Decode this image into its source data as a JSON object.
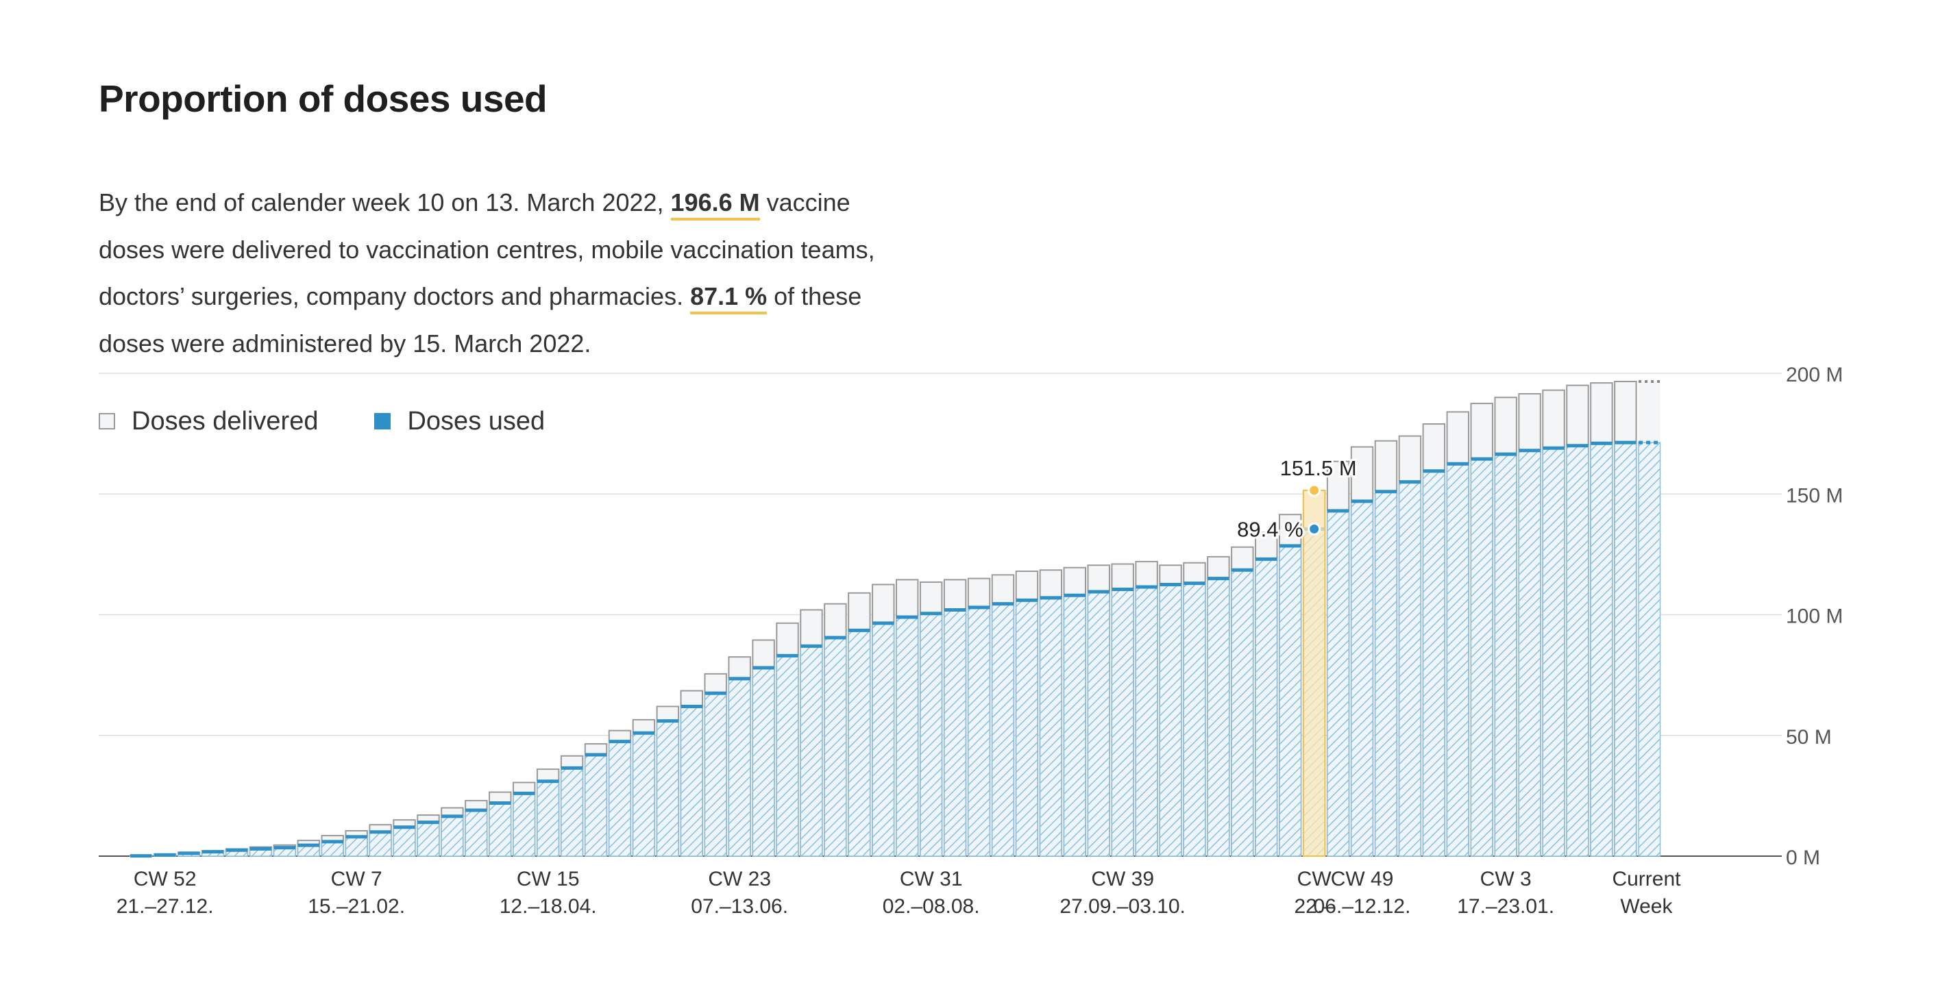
{
  "header": {
    "title": "Proportion of doses used"
  },
  "intro": {
    "part1": "By the end of calender week 10 on 13. March 2022, ",
    "delivered_total": "196.6 M",
    "part2": " vaccine doses were delivered to vaccination centres, mobile vaccination teams, doctors’ surgeries, company doctors and pharmacies. ",
    "used_share": "87.1 %",
    "part3": " of these doses were administered by 15. March 2022."
  },
  "legend": {
    "delivered_label": "Doses delivered",
    "used_label": "Doses used"
  },
  "colors": {
    "used_accent": "#2f90c7",
    "hatch": "#8cc0df",
    "hatch_bg": "#eef6fb",
    "delivered_fill": "#f4f5f6",
    "delivered_stroke": "#9a9a9a",
    "highlight": "#f4c14b",
    "highlight_fill": "#fbe7b5",
    "grid": "#dddddd",
    "axis": "#555555"
  },
  "chart_data": {
    "type": "bar",
    "unit": "M",
    "ylim": [
      0,
      200
    ],
    "yticks": [
      {
        "value": 0,
        "label": "0 M"
      },
      {
        "value": 50,
        "label": "50 M"
      },
      {
        "value": 100,
        "label": "100 M"
      },
      {
        "value": 150,
        "label": "150 M"
      },
      {
        "value": 200,
        "label": "200 M"
      }
    ],
    "grid": true,
    "legend_position": "top-left",
    "series": [
      {
        "name": "Doses delivered",
        "values": [
          0.2,
          0.8,
          1.5,
          2.2,
          3.0,
          3.8,
          4.6,
          6.5,
          8.5,
          10.5,
          13.0,
          15.0,
          17.0,
          20.0,
          23.0,
          26.5,
          30.5,
          36.0,
          41.5,
          46.5,
          52.0,
          56.5,
          62.0,
          68.5,
          75.5,
          82.5,
          89.5,
          96.5,
          102.0,
          104.5,
          109.0,
          112.5,
          114.5,
          113.5,
          114.5,
          115.0,
          116.5,
          118.0,
          118.5,
          119.5,
          120.5,
          121.0,
          122.0,
          120.5,
          121.5,
          124.0,
          128.0,
          134.0,
          141.5,
          151.5,
          163.5,
          169.5,
          172.0,
          174.0,
          179.0,
          184.0,
          187.5,
          190.0,
          191.5,
          193.0,
          195.0,
          196.0,
          196.6,
          196.6
        ],
        "note_last": "dotted"
      },
      {
        "name": "Doses used",
        "values": [
          0.1,
          0.5,
          1.2,
          1.8,
          2.5,
          3.0,
          3.5,
          4.5,
          6.0,
          8.0,
          10.0,
          12.0,
          14.0,
          16.5,
          19.0,
          22.0,
          26.0,
          31.0,
          36.5,
          42.0,
          47.5,
          51.0,
          56.0,
          62.0,
          67.5,
          73.5,
          78.0,
          83.0,
          87.0,
          90.5,
          93.5,
          96.5,
          99.0,
          100.5,
          102.0,
          103.0,
          104.5,
          106.0,
          107.0,
          108.0,
          109.5,
          110.5,
          111.5,
          112.5,
          113.0,
          115.0,
          118.5,
          123.0,
          128.5,
          135.5,
          143.0,
          147.0,
          151.0,
          155.0,
          159.5,
          162.5,
          164.5,
          166.5,
          168.0,
          169.0,
          170.0,
          171.0,
          171.3,
          171.3
        ]
      }
    ],
    "x_ticks": [
      {
        "index": 1,
        "label": "CW 52",
        "sub": "21.–27.12."
      },
      {
        "index": 9,
        "label": "CW 7",
        "sub": "15.–21.02."
      },
      {
        "index": 17,
        "label": "CW 15",
        "sub": "12.–18.04."
      },
      {
        "index": 25,
        "label": "CW 23",
        "sub": "07.–13.06."
      },
      {
        "index": 33,
        "label": "CW 31",
        "sub": "02.–08.08."
      },
      {
        "index": 41,
        "label": "CW 39",
        "sub": "27.09.–03.10."
      },
      {
        "index": 49,
        "label": "CW",
        "sub": "22.–"
      },
      {
        "index": 51,
        "label": "CW 49",
        "sub": "06.–12.12."
      },
      {
        "index": 57,
        "label": "CW 3",
        "sub": "17.–23.01."
      },
      {
        "index": 63,
        "label": "Current",
        "sub": "Week"
      }
    ],
    "highlight": {
      "index": 49,
      "delivered_label": "151.5 M",
      "used_pct_label": "89.4 %"
    }
  }
}
